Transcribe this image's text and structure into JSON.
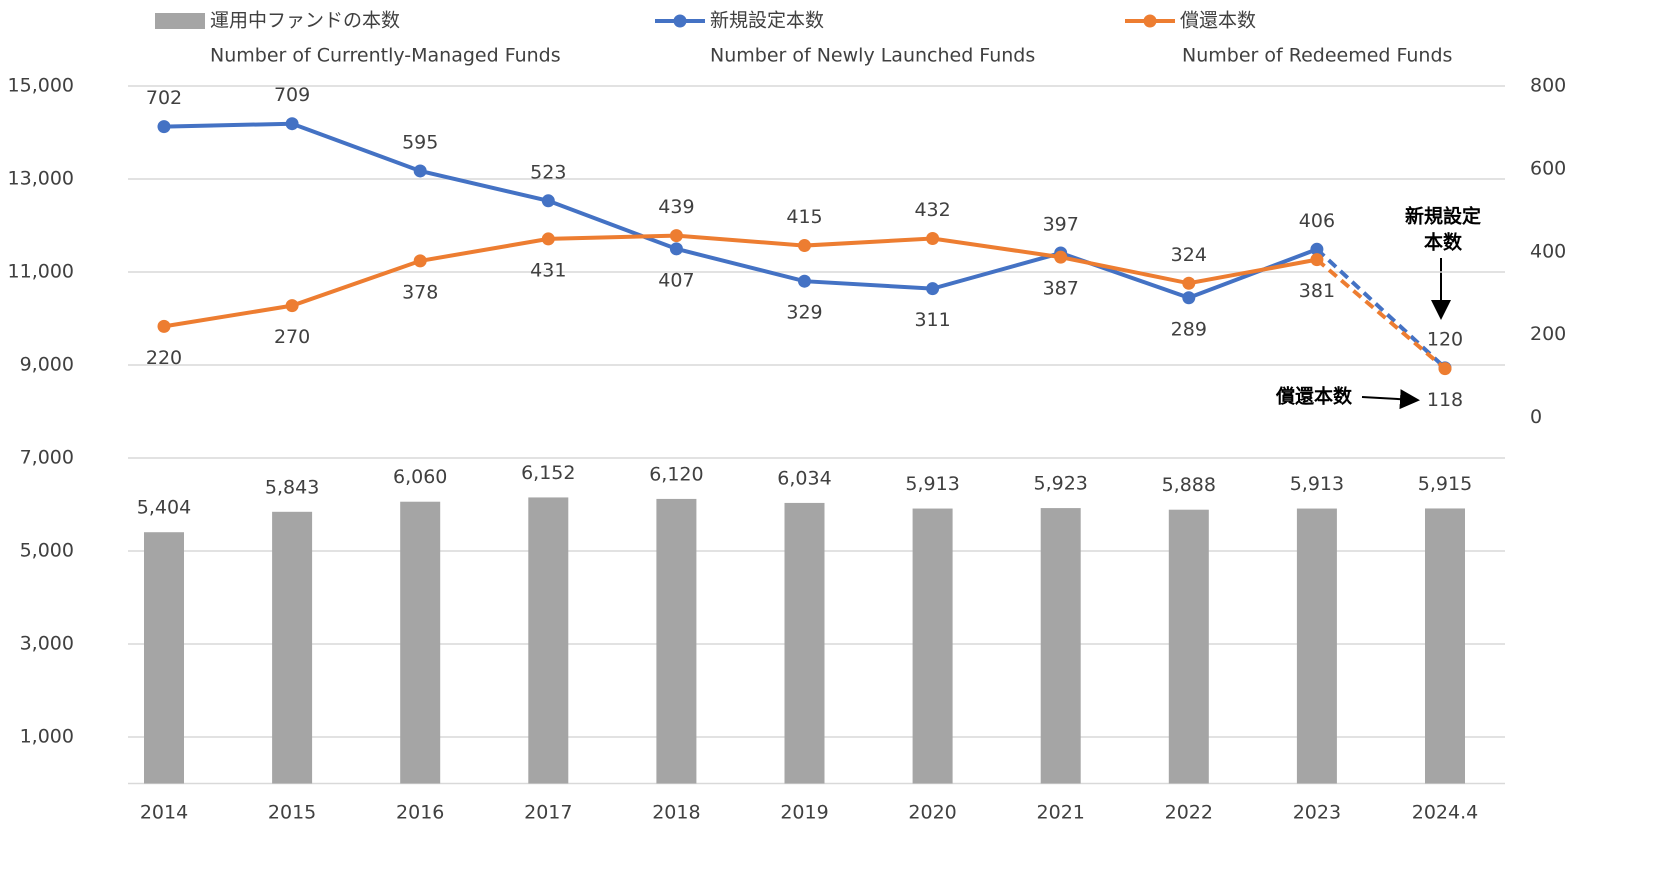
{
  "chart_data": {
    "type": "bar_line",
    "categories": [
      "2014",
      "2015",
      "2016",
      "2017",
      "2018",
      "2019",
      "2020",
      "2021",
      "2022",
      "2023",
      "2024.4"
    ],
    "series": [
      {
        "name": "運用中ファンドの本数",
        "legend_subtitle": "Number of Currently-Managed Funds",
        "type": "bar",
        "color": "#a5a5a5",
        "values": [
          5404,
          5843,
          6060,
          6152,
          6120,
          6034,
          5913,
          5923,
          5888,
          5913,
          5915
        ],
        "value_labels": [
          "5,404",
          "5,843",
          "6,060",
          "6,152",
          "6,120",
          "6,034",
          "5,913",
          "5,923",
          "5,888",
          "5,913",
          "5,915"
        ]
      },
      {
        "name": "新規設定本数",
        "legend_subtitle": "Number of Newly Launched Funds",
        "type": "line",
        "axis": "y2",
        "color": "#4472c4",
        "values": [
          702,
          709,
          595,
          523,
          407,
          329,
          311,
          397,
          289,
          406,
          120
        ]
      },
      {
        "name": "償還本数",
        "legend_subtitle": "Number of Redeemed Funds",
        "type": "line",
        "axis": "y2",
        "color": "#ed7d31",
        "values": [
          220,
          270,
          378,
          431,
          439,
          415,
          432,
          387,
          324,
          381,
          118
        ]
      }
    ],
    "ylim": [
      0,
      15000
    ],
    "yticks": [
      {
        "value": 1000,
        "label": "1,000"
      },
      {
        "value": 3000,
        "label": "3,000"
      },
      {
        "value": 5000,
        "label": "5,000"
      },
      {
        "value": 7000,
        "label": "7,000"
      },
      {
        "value": 9000,
        "label": "9,000"
      },
      {
        "value": 11000,
        "label": "11,000"
      },
      {
        "value": 13000,
        "label": "13,000"
      },
      {
        "value": 15000,
        "label": "15,000"
      }
    ],
    "y2lim": [
      -883,
      800
    ],
    "y2ticks": [
      0,
      200,
      400,
      600,
      800
    ],
    "grid": true,
    "annotations": [
      {
        "text": [
          "新規設定",
          "本数"
        ]
      },
      {
        "text": "償還本数"
      }
    ]
  }
}
